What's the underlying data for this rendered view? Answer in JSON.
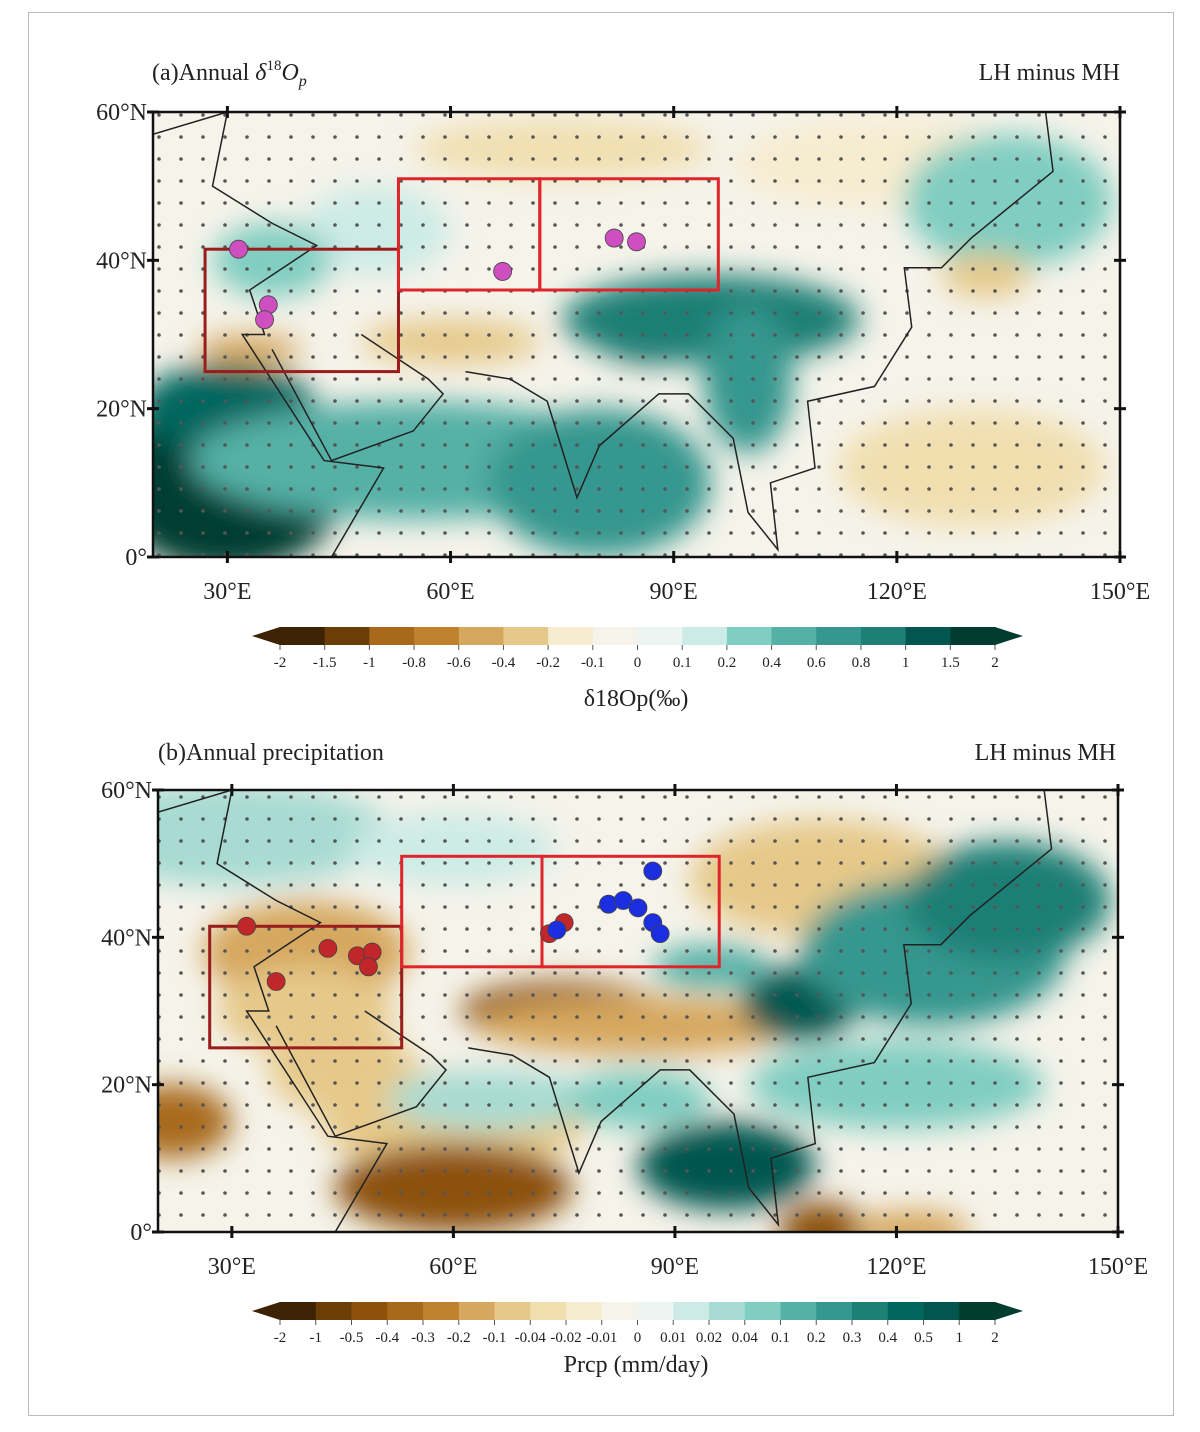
{
  "panels": [
    {
      "title": "(a)Annual δ18Op",
      "title_prefix": "(a)Annual ",
      "title_symbol": "δ",
      "title_sup": "18",
      "title_sub_var": "O",
      "title_sub": "p",
      "right_label": "LH minus MH",
      "lat_ticks": [
        "60°N",
        "40°N",
        "20°N",
        "0°"
      ],
      "lon_ticks": [
        "30°E",
        "60°E",
        "90°E",
        "120°E",
        "150°E"
      ],
      "colorbar": {
        "labels": [
          "-2",
          "-1.5",
          "-1",
          "-0.8",
          "-0.6",
          "-0.4",
          "-0.2",
          "-0.1",
          "0",
          "0.1",
          "0.2",
          "0.4",
          "0.6",
          "0.8",
          "1",
          "1.5",
          "2"
        ],
        "title": "δ18Op(‰)"
      },
      "marker_color": "#d04fc0",
      "sites": [
        [
          31.5,
          41.5
        ],
        [
          35.5,
          34
        ],
        [
          35,
          32
        ],
        [
          67,
          38.5
        ],
        [
          82,
          43
        ],
        [
          85,
          42.5
        ]
      ]
    },
    {
      "title": "(b)Annual precipitation",
      "right_label": "LH minus MH",
      "lat_ticks": [
        "60°N",
        "40°N",
        "20°N",
        "0°"
      ],
      "lon_ticks": [
        "30°E",
        "60°E",
        "90°E",
        "120°E",
        "150°E"
      ],
      "colorbar": {
        "labels": [
          "-2",
          "-1",
          "-0.5",
          "-0.4",
          "-0.3",
          "-0.2",
          "-0.1",
          "-0.04",
          "-0.02",
          "-0.01",
          "0",
          "0.01",
          "0.02",
          "0.04",
          "0.1",
          "0.2",
          "0.3",
          "0.4",
          "0.5",
          "1",
          "2"
        ],
        "title": "Prcp (mm/day)"
      },
      "sites_red": [
        [
          32,
          41.5
        ],
        [
          43,
          38.5
        ],
        [
          47,
          37.5
        ],
        [
          49,
          38
        ],
        [
          48.5,
          36
        ],
        [
          36,
          34
        ],
        [
          73,
          40.5
        ],
        [
          75,
          42
        ]
      ],
      "sites_blue": [
        [
          81,
          44.5
        ],
        [
          83,
          45
        ],
        [
          85,
          44
        ],
        [
          87,
          49
        ],
        [
          87,
          42
        ],
        [
          88,
          40.5
        ],
        [
          74,
          41
        ]
      ],
      "red_color": "#c0262a",
      "blue_color": "#1b2ee0"
    }
  ],
  "regions": {
    "west": {
      "lon": [
        27,
        53
      ],
      "lat": [
        25,
        41.5
      ],
      "color": "#9a1c1c"
    },
    "central": {
      "lon": [
        53,
        72
      ],
      "lat": [
        36,
        51
      ],
      "color": "#e0252a"
    },
    "east": {
      "lon": [
        72,
        96
      ],
      "lat": [
        36,
        51
      ],
      "color": "#e0252a"
    }
  },
  "palette": [
    "#3d2304",
    "#6b3e08",
    "#8c510a",
    "#a86a1a",
    "#bf812d",
    "#d6a75e",
    "#e6c98a",
    "#f1dfb0",
    "#f6ecd0",
    "#f5f3ea",
    "#edf5f3",
    "#cdebe6",
    "#a7dbd3",
    "#80cdc1",
    "#55b0a6",
    "#35978f",
    "#1d7f76",
    "#01665e",
    "#02564f",
    "#003c30"
  ]
}
